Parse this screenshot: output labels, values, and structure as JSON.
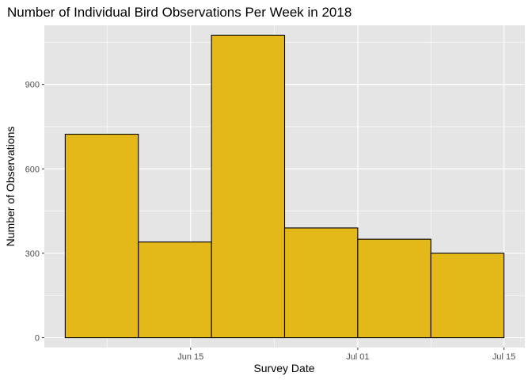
{
  "chart_data": {
    "type": "bar",
    "title": "Number of Individual Bird Observations Per Week in 2018",
    "xlabel": "Survey Date",
    "ylabel": "Number of Observations",
    "x_axis": "date",
    "x_range": [
      "2018-06-01",
      "2018-07-17"
    ],
    "x_ticks": [
      {
        "date": "2018-06-15",
        "label": "Jun 15"
      },
      {
        "date": "2018-07-01",
        "label": "Jul 01"
      },
      {
        "date": "2018-07-15",
        "label": "Jul 15"
      }
    ],
    "ylim": [
      -35,
      1110
    ],
    "y_ticks": [
      0,
      300,
      600,
      900
    ],
    "bins": [
      {
        "start": "2018-06-03",
        "end": "2018-06-10",
        "value": 723
      },
      {
        "start": "2018-06-10",
        "end": "2018-06-17",
        "value": 340
      },
      {
        "start": "2018-06-17",
        "end": "2018-06-24",
        "value": 1075
      },
      {
        "start": "2018-06-24",
        "end": "2018-07-01",
        "value": 390
      },
      {
        "start": "2018-07-01",
        "end": "2018-07-08",
        "value": 350
      },
      {
        "start": "2018-07-08",
        "end": "2018-07-15",
        "value": 300
      }
    ],
    "grid": true,
    "colors": {
      "panel": "#e5e5e5",
      "grid": "#ffffff",
      "bar_fill": "#e3b818",
      "bar_stroke": "#000000"
    }
  }
}
